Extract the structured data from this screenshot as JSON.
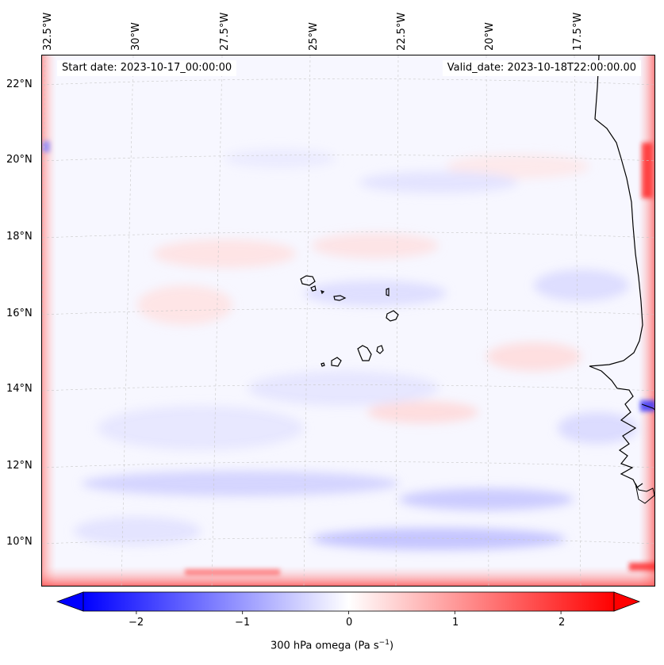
{
  "map": {
    "start_date": "Start date: 2023-10-17_00:00:00",
    "valid_date": "Valid_date: 2023-10-18T22:00:00.00",
    "lon_labels": [
      "32.5°W",
      "30°W",
      "27.5°W",
      "25°W",
      "22.5°W",
      "20°W",
      "17.5°W"
    ],
    "lat_labels": [
      "22°N",
      "20°N",
      "18°N",
      "16°N",
      "14°N",
      "12°N",
      "10°N"
    ],
    "colormap": "bwr",
    "colors": {
      "negative": "#0000ff",
      "zero": "#ffffff",
      "positive": "#ff0000",
      "coastline": "#000000"
    }
  },
  "colorbar": {
    "ticks": [
      "−2",
      "−1",
      "0",
      "1",
      "2"
    ],
    "tick_values": [
      -2,
      -1,
      0,
      1,
      2
    ],
    "range": [
      -2.5,
      2.5
    ],
    "label": "300 hPa omega (Pa s",
    "label_exp": "−1",
    "label_end": ")"
  }
}
